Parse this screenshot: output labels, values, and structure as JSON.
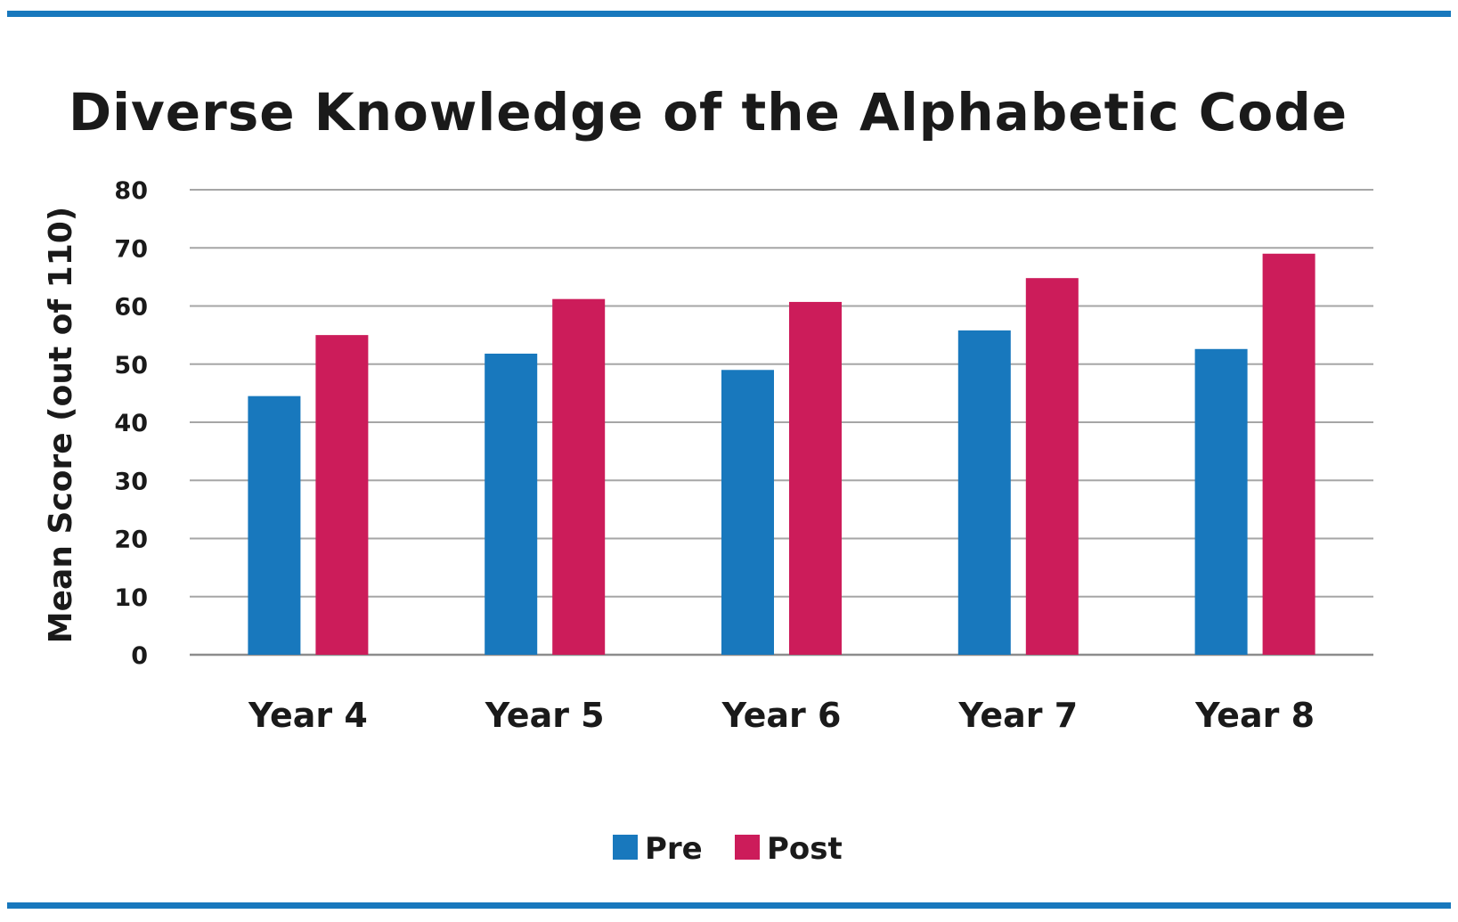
{
  "colors": {
    "frame": "#1878bd",
    "pre": "#1878bd",
    "post": "#cc1c5a",
    "grid": "#a6a6a6",
    "text": "#1a1a1a"
  },
  "chart_data": {
    "type": "bar",
    "title": "Diverse Knowledge of the Alphabetic Code",
    "xlabel": "",
    "ylabel": "Mean Score (out of 110)",
    "ylim": [
      0,
      80
    ],
    "yticks": [
      0,
      10,
      20,
      30,
      40,
      50,
      60,
      70,
      80
    ],
    "grid": true,
    "legend_position": "bottom-center",
    "categories": [
      "Year 4",
      "Year 5",
      "Year 6",
      "Year 7",
      "Year 8"
    ],
    "series": [
      {
        "name": "Pre",
        "color": "#1878bd",
        "values": [
          44.5,
          51.8,
          49.0,
          55.8,
          52.6
        ]
      },
      {
        "name": "Post",
        "color": "#cc1c5a",
        "values": [
          55.0,
          61.2,
          60.7,
          64.8,
          69.0
        ]
      }
    ]
  }
}
